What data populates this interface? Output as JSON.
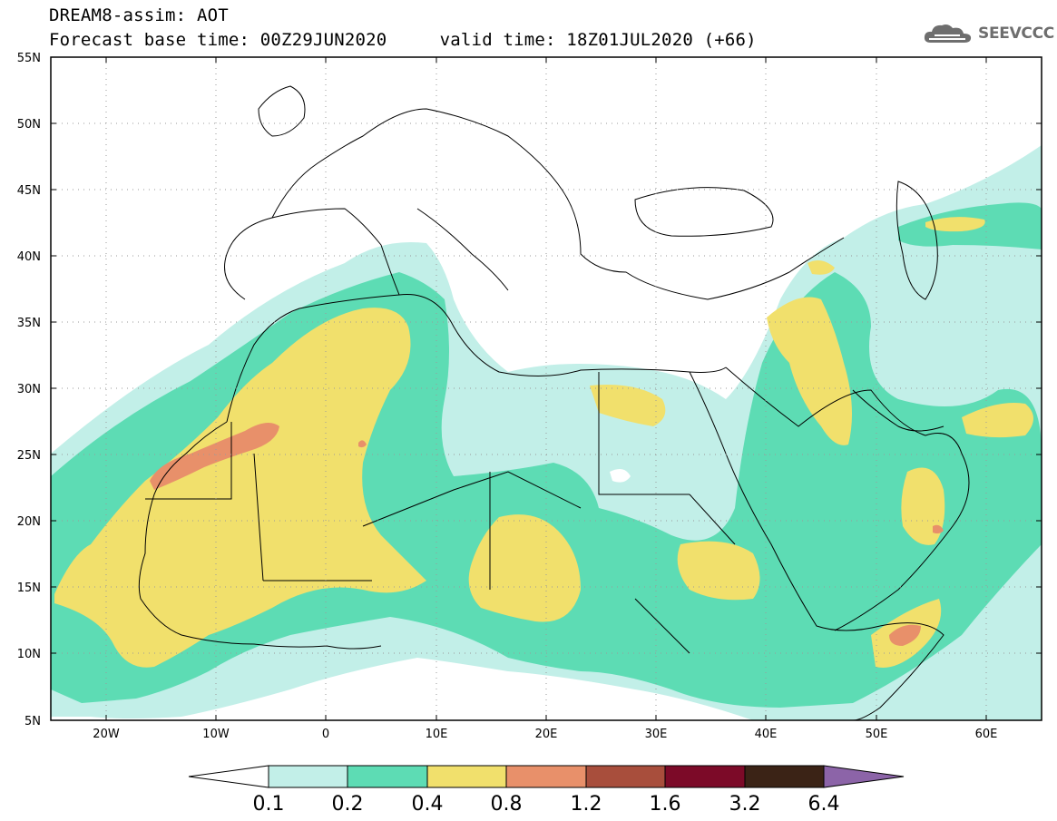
{
  "header": {
    "title_line1": "DREAM8-assim: AOT",
    "title_line2": "Forecast base time: 00Z29JUN2020     valid time: 18Z01JUL2020 (+66)"
  },
  "logo": {
    "text": "SEEVCCC",
    "icon": "cloud-icon",
    "color": "#6e6e6e"
  },
  "map": {
    "lat_labels": [
      "55N",
      "50N",
      "45N",
      "40N",
      "35N",
      "30N",
      "25N",
      "20N",
      "15N",
      "10N",
      "5N"
    ],
    "lon_labels": [
      "20W",
      "10W",
      "0",
      "10E",
      "20E",
      "30E",
      "40E",
      "50E",
      "60E"
    ],
    "lat_range": [
      5,
      55
    ],
    "lon_range": [
      -25,
      65
    ],
    "grid": "dotted"
  },
  "colorbar": {
    "labels": [
      "0.1",
      "0.2",
      "0.4",
      "0.8",
      "1.2",
      "1.6",
      "3.2",
      "6.4"
    ],
    "colors": [
      "#ffffff",
      "#c2efe8",
      "#5ddcb4",
      "#f1e06c",
      "#e8906a",
      "#a84e3c",
      "#7c0a28",
      "#3b2316",
      "#8c64a8"
    ]
  }
}
